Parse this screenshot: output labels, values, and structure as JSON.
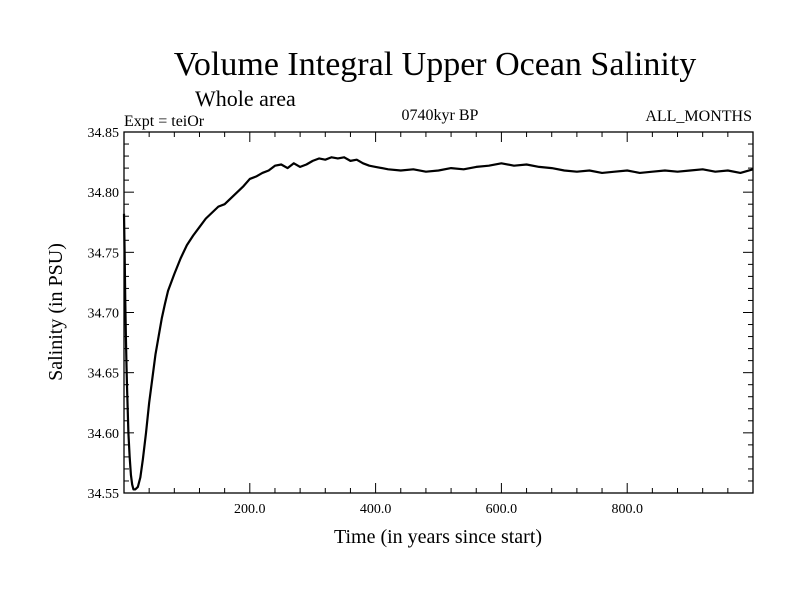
{
  "chart_data": {
    "type": "line",
    "title": "Volume Integral Upper Ocean Salinity",
    "subtitle": "Whole area",
    "experiment": "Expt = teiOr",
    "period": "0740kyr BP",
    "months": "ALL_MONTHS",
    "xlabel": "Time (in years since start)",
    "ylabel": "Salinity (in PSU)",
    "xlim": [
      0,
      1000
    ],
    "ylim": [
      34.55,
      34.85
    ],
    "x_ticks": [
      200,
      400,
      600,
      800
    ],
    "x_tick_labels": [
      "200.0",
      "400.0",
      "600.0",
      "800.0"
    ],
    "y_ticks": [
      34.55,
      34.6,
      34.65,
      34.7,
      34.75,
      34.8,
      34.85
    ],
    "y_tick_labels": [
      "34.55",
      "34.60",
      "34.65",
      "34.70",
      "34.75",
      "34.80",
      "34.85"
    ],
    "series": [
      {
        "name": "teiOr",
        "color": "#000000",
        "x": [
          0,
          1,
          2,
          3,
          4,
          5,
          7,
          9,
          11,
          13,
          15,
          18,
          22,
          26,
          30,
          35,
          40,
          45,
          50,
          55,
          60,
          65,
          70,
          80,
          90,
          100,
          110,
          120,
          130,
          140,
          150,
          160,
          170,
          180,
          190,
          200,
          210,
          220,
          230,
          240,
          250,
          260,
          270,
          280,
          290,
          300,
          310,
          320,
          330,
          340,
          350,
          360,
          370,
          380,
          390,
          400,
          420,
          440,
          460,
          480,
          500,
          520,
          540,
          560,
          580,
          600,
          620,
          640,
          660,
          680,
          700,
          720,
          740,
          760,
          780,
          800,
          820,
          840,
          860,
          880,
          900,
          920,
          940,
          960,
          980,
          1000
        ],
        "values": [
          34.782,
          34.75,
          34.71,
          34.68,
          34.655,
          34.635,
          34.6,
          34.58,
          34.565,
          34.557,
          34.553,
          34.553,
          34.555,
          34.563,
          34.578,
          34.6,
          34.625,
          34.645,
          34.665,
          34.68,
          34.695,
          34.707,
          34.718,
          34.732,
          34.745,
          34.756,
          34.764,
          34.771,
          34.778,
          34.783,
          34.788,
          34.79,
          34.795,
          34.8,
          34.805,
          34.811,
          34.813,
          34.816,
          34.818,
          34.822,
          34.823,
          34.82,
          34.824,
          34.821,
          34.823,
          34.826,
          34.828,
          34.827,
          34.829,
          34.828,
          34.829,
          34.826,
          34.827,
          34.824,
          34.822,
          34.821,
          34.819,
          34.818,
          34.819,
          34.817,
          34.818,
          34.82,
          34.819,
          34.821,
          34.822,
          34.824,
          34.822,
          34.823,
          34.821,
          34.82,
          34.818,
          34.817,
          34.818,
          34.816,
          34.817,
          34.818,
          34.816,
          34.817,
          34.818,
          34.817,
          34.818,
          34.819,
          34.817,
          34.818,
          34.816,
          34.819
        ]
      }
    ]
  }
}
